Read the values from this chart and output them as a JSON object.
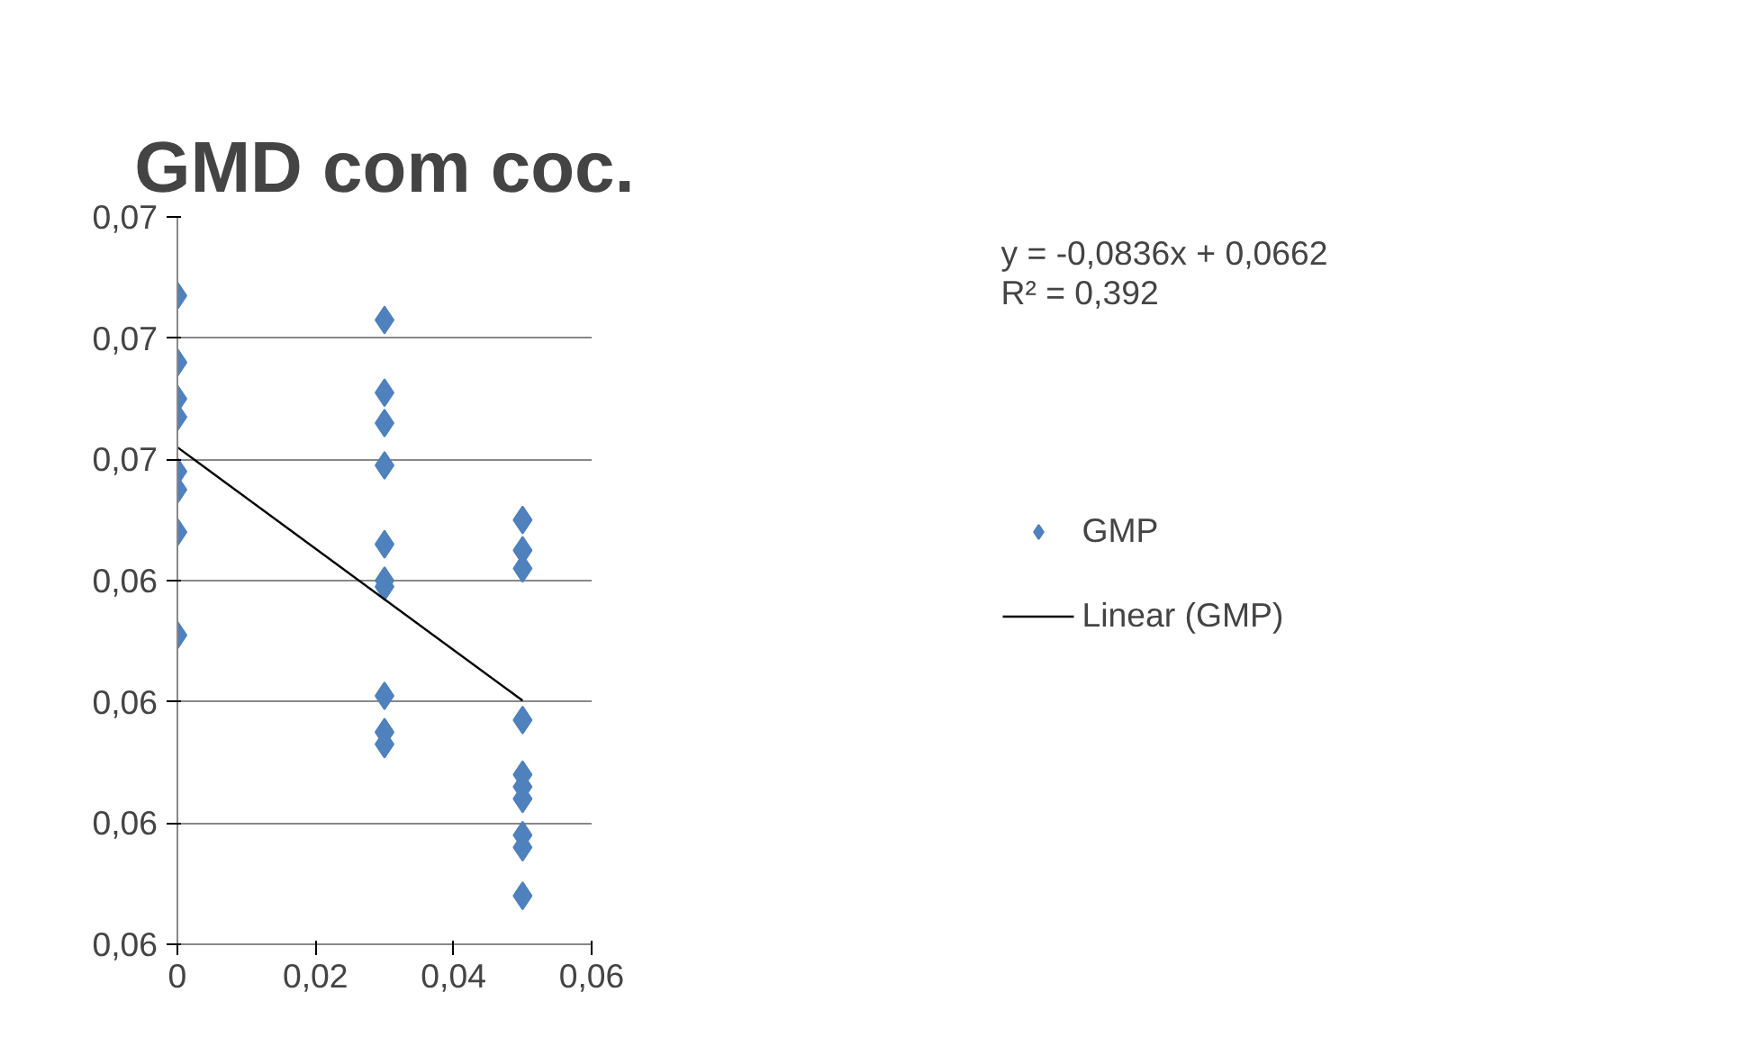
{
  "chart_data": {
    "type": "scatter",
    "title": "GMD com coc.",
    "marker": "diamond",
    "grid": "y",
    "legend": "right",
    "xlim": [
      0,
      0.06
    ],
    "xticks": [
      {
        "value": 0,
        "label": "0"
      },
      {
        "value": 0.02,
        "label": "0,02"
      },
      {
        "value": 0.04,
        "label": "0,04"
      },
      {
        "value": 0.06,
        "label": "0,06"
      }
    ],
    "ylim": [
      0.058,
      0.07
    ],
    "yticks": [
      {
        "value": 0.058,
        "label": "0,06"
      },
      {
        "value": 0.06,
        "label": "0,06"
      },
      {
        "value": 0.062,
        "label": "0,06"
      },
      {
        "value": 0.064,
        "label": "0,06"
      },
      {
        "value": 0.066,
        "label": "0,07"
      },
      {
        "value": 0.068,
        "label": "0,07"
      },
      {
        "value": 0.07,
        "label": "0,07"
      }
    ],
    "annotations": [
      "y = -0,0836x + 0,0662\nR² = 0,392"
    ],
    "series": [
      {
        "name": "GMP",
        "color": "#4f81bd",
        "x": [
          0,
          0,
          0,
          0,
          0,
          0,
          0,
          0,
          0.03,
          0.03,
          0.03,
          0.03,
          0.03,
          0.03,
          0.03,
          0.03,
          0.03,
          0.03,
          0.05,
          0.05,
          0.05,
          0.05,
          0.05,
          0.05,
          0.05,
          0.05,
          0.05,
          0.05
        ],
        "values": [
          0.0687,
          0.0676,
          0.067,
          0.0667,
          0.0658,
          0.0655,
          0.0648,
          0.0631,
          0.0683,
          0.0671,
          0.0666,
          0.0659,
          0.0646,
          0.064,
          0.0639,
          0.0621,
          0.0615,
          0.0613,
          0.065,
          0.0645,
          0.0642,
          0.0617,
          0.0608,
          0.0606,
          0.0604,
          0.0598,
          0.0596,
          0.0588
        ]
      },
      {
        "name": "Linear (GMP)",
        "type": "line",
        "color": "#000000",
        "x": [
          0,
          0.05
        ],
        "values": [
          0.0662,
          0.06202
        ],
        "marker": "none"
      }
    ]
  }
}
